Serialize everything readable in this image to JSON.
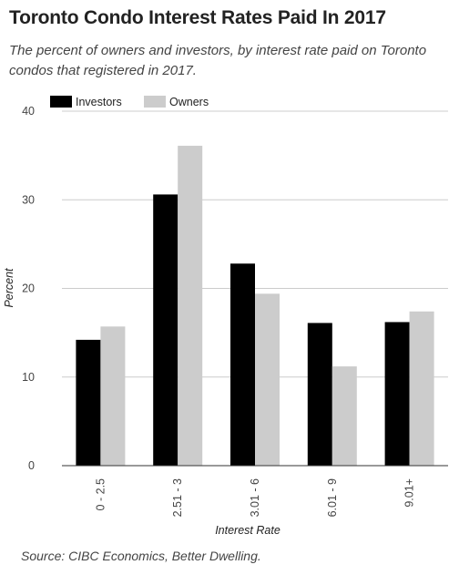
{
  "header": {
    "title": "Toronto Condo Interest Rates Paid In 2017",
    "subtitle": "The percent of owners and investors, by interest rate paid on Toronto condos that registered in 2017."
  },
  "footer": {
    "source": "Source: CIBC Economics, Better Dwelling."
  },
  "chart_data": {
    "type": "bar",
    "title": "Toronto Condo Interest Rates Paid In 2017",
    "xlabel": "Interest Rate",
    "ylabel": "Percent",
    "ylim": [
      0,
      40
    ],
    "yticks": [
      0,
      10,
      20,
      30,
      40
    ],
    "categories": [
      "0 - 2.5",
      "2.51 - 3",
      "3.01 - 6",
      "6.01 - 9",
      "9.01+"
    ],
    "series": [
      {
        "name": "Investors",
        "color": "#000000",
        "values": [
          14.2,
          30.6,
          22.8,
          16.1,
          16.2
        ]
      },
      {
        "name": "Owners",
        "color": "#cccccc",
        "values": [
          15.7,
          36.1,
          19.4,
          11.2,
          17.4
        ]
      }
    ],
    "legend_position": "top-left",
    "grid": true
  }
}
